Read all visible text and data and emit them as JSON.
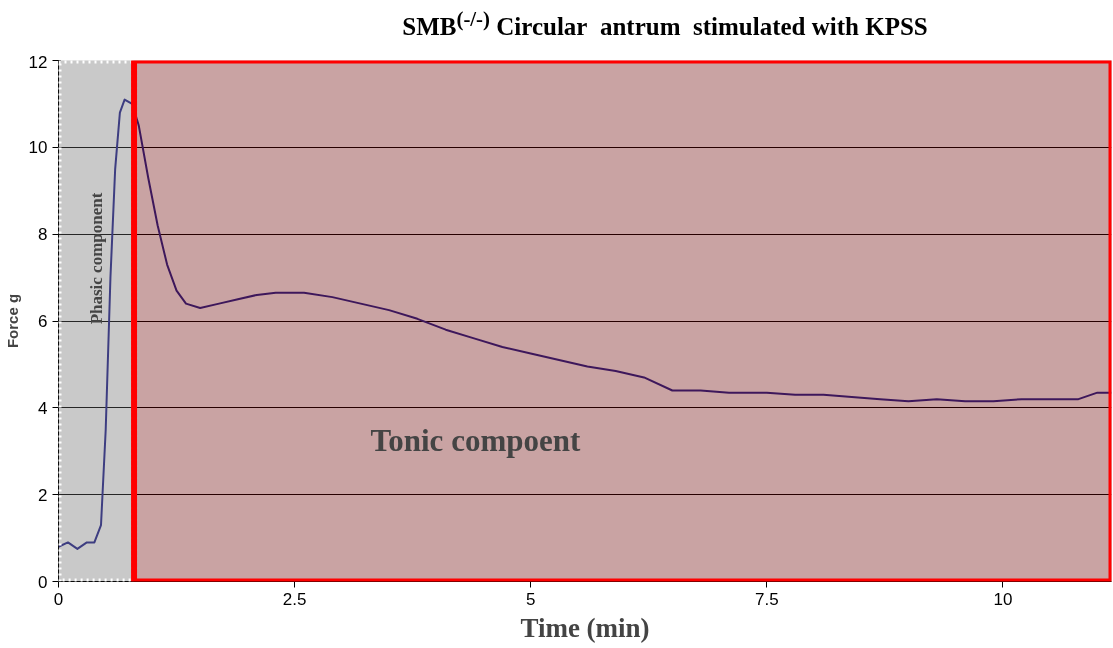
{
  "chart_data": {
    "type": "line",
    "title": "SMB$^{(-/-)}$ Circular  antrum  stimulated with KPSS",
    "xlabel": "Time (min)",
    "ylabel": "Force g",
    "x": [
      0,
      0.1,
      0.2,
      0.3,
      0.38,
      0.45,
      0.5,
      0.55,
      0.6,
      0.65,
      0.7,
      0.78,
      0.85,
      0.95,
      1.05,
      1.15,
      1.25,
      1.35,
      1.5,
      1.7,
      1.9,
      2.1,
      2.3,
      2.6,
      2.9,
      3.2,
      3.5,
      3.8,
      4.1,
      4.4,
      4.7,
      5.0,
      5.3,
      5.6,
      5.9,
      6.2,
      6.5,
      6.8,
      7.1,
      7.5,
      7.8,
      8.1,
      8.4,
      8.7,
      9.0,
      9.3,
      9.6,
      9.9,
      10.2,
      10.5,
      10.8,
      11.0,
      11.15
    ],
    "series": [
      {
        "color": "#1c1c6b",
        "values": [
          0.8,
          0.9,
          0.75,
          0.9,
          0.9,
          1.3,
          3.5,
          7,
          9.5,
          10.8,
          11.1,
          11.0,
          10.5,
          9.3,
          8.2,
          7.3,
          6.7,
          6.4,
          6.3,
          6.4,
          6.5,
          6.6,
          6.65,
          6.65,
          6.55,
          6.4,
          6.25,
          6.05,
          5.8,
          5.6,
          5.4,
          5.25,
          5.1,
          4.95,
          4.85,
          4.7,
          4.4,
          4.4,
          4.35,
          4.35,
          4.3,
          4.3,
          4.25,
          4.2,
          4.15,
          4.2,
          4.15,
          4.15,
          4.2,
          4.2,
          4.2,
          4.35,
          4.35
        ]
      }
    ],
    "xlim": [
      0,
      11.15
    ],
    "ylim": [
      0,
      12
    ],
    "xticks": [
      0,
      2.5,
      5,
      7.5,
      10
    ],
    "yticks": [
      0,
      2,
      4,
      6,
      8,
      10,
      12
    ],
    "grid": "y",
    "marker": "none",
    "line_style": "solid",
    "bands": [
      {
        "axis": "x",
        "from": 0,
        "to": 0.8,
        "label": "Phasic component",
        "color": "#ffffff"
      },
      {
        "axis": "x",
        "from": 0.8,
        "to": 11.15,
        "label": "Tonic compoent",
        "color": "#ff0000"
      }
    ]
  }
}
